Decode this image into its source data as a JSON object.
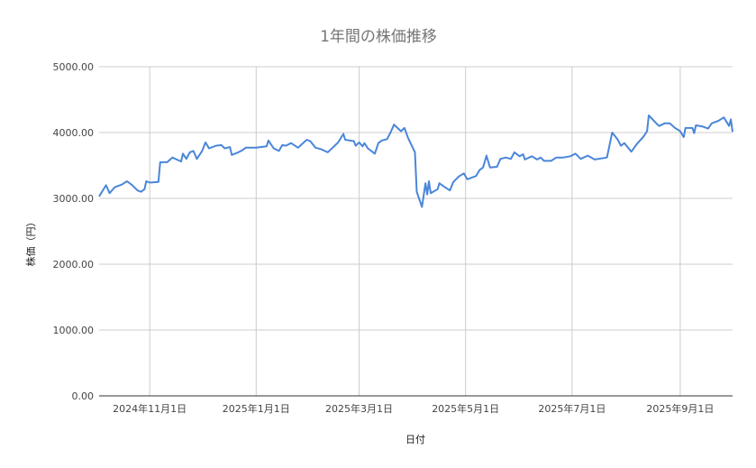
{
  "chart_data": {
    "type": "line",
    "title": "1年間の株価推移",
    "xlabel": "日付",
    "ylabel": "株価（円）",
    "ylim": [
      0,
      5000
    ],
    "xlim": [
      "2024-10-03",
      "2025-10-01"
    ],
    "grid": true,
    "legend": "none",
    "line_color": "#4a86d8",
    "y_ticks": [
      "0.00",
      "1000.00",
      "2000.00",
      "3000.00",
      "4000.00",
      "5000.00"
    ],
    "x_ticks": [
      {
        "date": "2024-11-01",
        "label": "2024年11月1日"
      },
      {
        "date": "2025-01-01",
        "label": "2025年1月1日"
      },
      {
        "date": "2025-03-01",
        "label": "2025年3月1日"
      },
      {
        "date": "2025-05-01",
        "label": "2025年5月1日"
      },
      {
        "date": "2025-07-01",
        "label": "2025年7月1日"
      },
      {
        "date": "2025-09-01",
        "label": "2025年9月1日"
      }
    ],
    "series": [
      {
        "points": [
          [
            "2024-10-03",
            3030
          ],
          [
            "2024-10-07",
            3200
          ],
          [
            "2024-10-09",
            3080
          ],
          [
            "2024-10-12",
            3170
          ],
          [
            "2024-10-16",
            3210
          ],
          [
            "2024-10-19",
            3260
          ],
          [
            "2024-10-22",
            3200
          ],
          [
            "2024-10-25",
            3120
          ],
          [
            "2024-10-27",
            3100
          ],
          [
            "2024-10-29",
            3140
          ],
          [
            "2024-10-30",
            3260
          ],
          [
            "2024-11-01",
            3240
          ],
          [
            "2024-11-06",
            3250
          ],
          [
            "2024-11-07",
            3550
          ],
          [
            "2024-11-11",
            3550
          ],
          [
            "2024-11-14",
            3620
          ],
          [
            "2024-11-19",
            3560
          ],
          [
            "2024-11-20",
            3680
          ],
          [
            "2024-11-22",
            3600
          ],
          [
            "2024-11-24",
            3700
          ],
          [
            "2024-11-26",
            3720
          ],
          [
            "2024-11-28",
            3600
          ],
          [
            "2024-12-01",
            3720
          ],
          [
            "2024-12-03",
            3850
          ],
          [
            "2024-12-05",
            3760
          ],
          [
            "2024-12-09",
            3800
          ],
          [
            "2024-12-12",
            3810
          ],
          [
            "2024-12-14",
            3760
          ],
          [
            "2024-12-17",
            3780
          ],
          [
            "2024-12-18",
            3660
          ],
          [
            "2024-12-21",
            3690
          ],
          [
            "2024-12-24",
            3730
          ],
          [
            "2024-12-26",
            3770
          ],
          [
            "2025-01-01",
            3770
          ],
          [
            "2025-01-07",
            3790
          ],
          [
            "2025-01-08",
            3880
          ],
          [
            "2025-01-11",
            3760
          ],
          [
            "2025-01-14",
            3720
          ],
          [
            "2025-01-16",
            3810
          ],
          [
            "2025-01-18",
            3800
          ],
          [
            "2025-01-21",
            3840
          ],
          [
            "2025-01-25",
            3770
          ],
          [
            "2025-01-27",
            3820
          ],
          [
            "2025-01-30",
            3890
          ],
          [
            "2025-02-01",
            3870
          ],
          [
            "2025-02-04",
            3770
          ],
          [
            "2025-02-07",
            3750
          ],
          [
            "2025-02-11",
            3700
          ],
          [
            "2025-02-13",
            3750
          ],
          [
            "2025-02-17",
            3850
          ],
          [
            "2025-02-20",
            3980
          ],
          [
            "2025-02-21",
            3890
          ],
          [
            "2025-02-26",
            3870
          ],
          [
            "2025-02-27",
            3800
          ],
          [
            "2025-03-01",
            3850
          ],
          [
            "2025-03-03",
            3790
          ],
          [
            "2025-03-04",
            3840
          ],
          [
            "2025-03-06",
            3760
          ],
          [
            "2025-03-10",
            3680
          ],
          [
            "2025-03-12",
            3840
          ],
          [
            "2025-03-14",
            3880
          ],
          [
            "2025-03-17",
            3900
          ],
          [
            "2025-03-19",
            4000
          ],
          [
            "2025-03-21",
            4120
          ],
          [
            "2025-03-25",
            4020
          ],
          [
            "2025-03-27",
            4070
          ],
          [
            "2025-03-29",
            3920
          ],
          [
            "2025-04-02",
            3700
          ],
          [
            "2025-04-03",
            3100
          ],
          [
            "2025-04-06",
            2870
          ],
          [
            "2025-04-08",
            3230
          ],
          [
            "2025-04-09",
            3060
          ],
          [
            "2025-04-10",
            3260
          ],
          [
            "2025-04-11",
            3080
          ],
          [
            "2025-04-15",
            3140
          ],
          [
            "2025-04-16",
            3230
          ],
          [
            "2025-04-18",
            3190
          ],
          [
            "2025-04-22",
            3120
          ],
          [
            "2025-04-24",
            3250
          ],
          [
            "2025-04-27",
            3330
          ],
          [
            "2025-04-30",
            3380
          ],
          [
            "2025-05-02",
            3290
          ],
          [
            "2025-05-07",
            3340
          ],
          [
            "2025-05-09",
            3430
          ],
          [
            "2025-05-11",
            3470
          ],
          [
            "2025-05-13",
            3650
          ],
          [
            "2025-05-15",
            3470
          ],
          [
            "2025-05-19",
            3480
          ],
          [
            "2025-05-21",
            3600
          ],
          [
            "2025-05-24",
            3620
          ],
          [
            "2025-05-27",
            3600
          ],
          [
            "2025-05-29",
            3700
          ],
          [
            "2025-06-01",
            3640
          ],
          [
            "2025-06-03",
            3670
          ],
          [
            "2025-06-04",
            3590
          ],
          [
            "2025-06-08",
            3640
          ],
          [
            "2025-06-11",
            3590
          ],
          [
            "2025-06-13",
            3620
          ],
          [
            "2025-06-15",
            3570
          ],
          [
            "2025-06-19",
            3570
          ],
          [
            "2025-06-22",
            3620
          ],
          [
            "2025-06-26",
            3620
          ],
          [
            "2025-06-30",
            3640
          ],
          [
            "2025-07-03",
            3680
          ],
          [
            "2025-07-06",
            3600
          ],
          [
            "2025-07-10",
            3650
          ],
          [
            "2025-07-14",
            3590
          ],
          [
            "2025-07-21",
            3620
          ],
          [
            "2025-07-24",
            4000
          ],
          [
            "2025-07-27",
            3900
          ],
          [
            "2025-07-29",
            3800
          ],
          [
            "2025-07-31",
            3840
          ],
          [
            "2025-08-04",
            3710
          ],
          [
            "2025-08-07",
            3820
          ],
          [
            "2025-08-11",
            3940
          ],
          [
            "2025-08-13",
            4020
          ],
          [
            "2025-08-14",
            4260
          ],
          [
            "2025-08-19",
            4120
          ],
          [
            "2025-08-20",
            4100
          ],
          [
            "2025-08-23",
            4140
          ],
          [
            "2025-08-26",
            4140
          ],
          [
            "2025-08-29",
            4070
          ],
          [
            "2025-09-01",
            4020
          ],
          [
            "2025-09-03",
            3930
          ],
          [
            "2025-09-04",
            4070
          ],
          [
            "2025-09-08",
            4070
          ],
          [
            "2025-09-09",
            3990
          ],
          [
            "2025-09-10",
            4110
          ],
          [
            "2025-09-14",
            4090
          ],
          [
            "2025-09-17",
            4060
          ],
          [
            "2025-09-19",
            4140
          ],
          [
            "2025-09-23",
            4180
          ],
          [
            "2025-09-26",
            4230
          ],
          [
            "2025-09-29",
            4100
          ],
          [
            "2025-09-30",
            4200
          ],
          [
            "2025-10-01",
            4010
          ]
        ]
      }
    ]
  }
}
